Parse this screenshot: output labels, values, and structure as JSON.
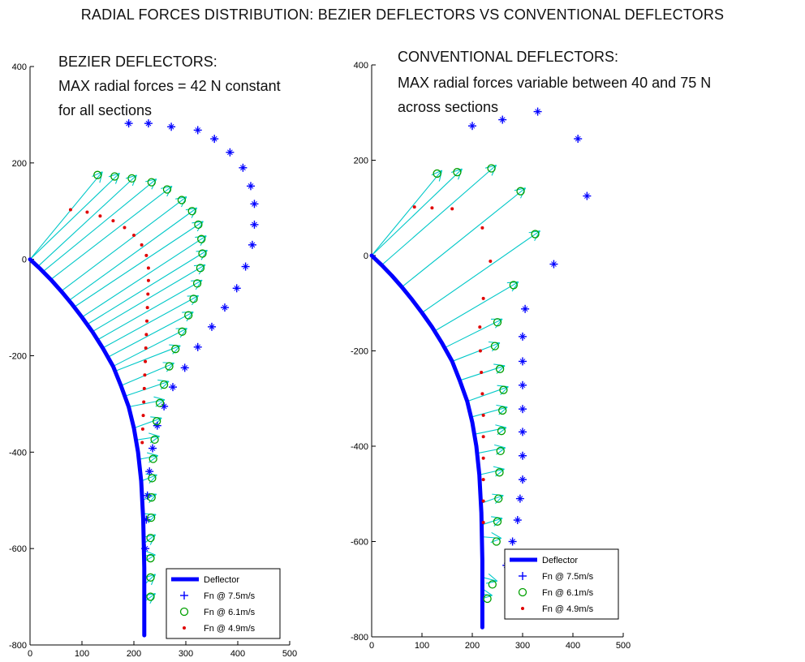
{
  "figure": {
    "title": "RADIAL FORCES DISTRIBUTION: BEZIER DEFLECTORS VS CONVENTIONAL DEFLECTORS"
  },
  "colors": {
    "deflector": "#0000ff",
    "fn75": "#0000ff",
    "fn61": "#00a000",
    "fn49": "#e00000",
    "arrow": "#00c8c8"
  },
  "chart_data": [
    {
      "type": "scatter",
      "panel": "bezier",
      "annotation": {
        "line1": "BEZIER DEFLECTORS:",
        "line2": "MAX radial forces = 42 N constant",
        "line3": "for all sections"
      },
      "xlim": [
        0,
        500
      ],
      "ylim": [
        -800,
        400
      ],
      "xticks": [
        0,
        100,
        200,
        300,
        400,
        500
      ],
      "yticks": [
        400,
        200,
        0,
        -200,
        -400,
        -600,
        -800
      ],
      "legend": {
        "placement": "bottom-right",
        "entries": [
          "Deflector",
          "Fn @ 7.5m/s",
          "Fn @ 6.1m/s",
          "Fn @ 4.9m/s"
        ]
      },
      "deflector": {
        "x": [
          0,
          20,
          40,
          60,
          80,
          100,
          120,
          140,
          160,
          175,
          190,
          200,
          208,
          214,
          218,
          220,
          220
        ],
        "y": [
          0,
          -20,
          -42,
          -66,
          -92,
          -120,
          -150,
          -184,
          -222,
          -262,
          -306,
          -350,
          -400,
          -460,
          -540,
          -640,
          -780
        ]
      },
      "fn75": {
        "x": [
          190,
          228,
          272,
          323,
          355,
          385,
          410,
          425,
          432,
          432,
          428,
          415,
          398,
          375,
          350,
          323,
          298,
          275,
          258,
          245,
          236,
          230,
          226,
          224,
          222
        ],
        "y": [
          282,
          282,
          275,
          268,
          250,
          222,
          190,
          152,
          115,
          72,
          30,
          -15,
          -60,
          -100,
          -140,
          -182,
          -225,
          -265,
          -305,
          -345,
          -392,
          -440,
          -490,
          -540,
          -600
        ]
      },
      "fn61": {
        "x": [
          130,
          163,
          196,
          234,
          264,
          292,
          312,
          324,
          330,
          332,
          328,
          322,
          315,
          305,
          293,
          280,
          268,
          258,
          250,
          244,
          240,
          237,
          235,
          234,
          233,
          232,
          232,
          232,
          232
        ],
        "y": [
          175,
          172,
          168,
          160,
          145,
          123,
          100,
          72,
          42,
          12,
          -18,
          -50,
          -82,
          -116,
          -150,
          -186,
          -222,
          -260,
          -298,
          -336,
          -374,
          -414,
          -454,
          -494,
          -536,
          -578,
          -620,
          -660,
          -700
        ]
      },
      "fn49": {
        "x": [
          78,
          110,
          135,
          160,
          182,
          200,
          215,
          224,
          228,
          228,
          227,
          226,
          225,
          224,
          223,
          222,
          221,
          220,
          219,
          218,
          217,
          216
        ],
        "y": [
          103,
          98,
          90,
          80,
          66,
          50,
          30,
          8,
          -18,
          -44,
          -72,
          -100,
          -128,
          -156,
          -184,
          -212,
          -240,
          -268,
          -296,
          -324,
          -352,
          -380
        ]
      }
    },
    {
      "type": "scatter",
      "panel": "conventional",
      "annotation": {
        "line1": "CONVENTIONAL DEFLECTORS:",
        "line2": "MAX radial forces variable between 40 and 75 N",
        "line3": "across sections"
      },
      "xlim": [
        0,
        500
      ],
      "ylim": [
        -800,
        400
      ],
      "xticks": [
        0,
        100,
        200,
        300,
        400,
        500
      ],
      "yticks": [
        400,
        200,
        0,
        -200,
        -400,
        -600,
        -800
      ],
      "legend": {
        "placement": "bottom-right",
        "entries": [
          "Deflector",
          "Fn @ 7.5m/s",
          "Fn @ 6.1m/s",
          "Fn @ 4.9m/s"
        ]
      },
      "deflector": {
        "x": [
          0,
          20,
          40,
          60,
          80,
          100,
          120,
          140,
          160,
          175,
          190,
          200,
          208,
          214,
          218,
          220,
          220
        ],
        "y": [
          0,
          -20,
          -42,
          -66,
          -92,
          -120,
          -150,
          -184,
          -222,
          -262,
          -306,
          -350,
          -400,
          -460,
          -540,
          -640,
          -780
        ]
      },
      "fn75": {
        "x": [
          200,
          260,
          330,
          410,
          428,
          362,
          305,
          300,
          300,
          300,
          300,
          300,
          300,
          300,
          295,
          290,
          280,
          268
        ],
        "y": [
          272,
          285,
          302,
          245,
          125,
          -18,
          -112,
          -170,
          -222,
          -272,
          -322,
          -370,
          -420,
          -470,
          -510,
          -555,
          -600,
          -650
        ]
      },
      "fn61": {
        "x": [
          130,
          170,
          238,
          296,
          325,
          282,
          250,
          245,
          255,
          262,
          260,
          258,
          256,
          254,
          252,
          250,
          248,
          240,
          230
        ],
        "y": [
          172,
          175,
          183,
          135,
          45,
          -62,
          -140,
          -190,
          -238,
          -282,
          -325,
          -368,
          -410,
          -455,
          -510,
          -558,
          -600,
          -690,
          -720
        ]
      },
      "fn49": {
        "x": [
          85,
          120,
          160,
          220,
          236,
          222,
          215,
          216,
          218,
          220,
          222,
          222,
          222,
          222,
          222,
          222
        ],
        "y": [
          102,
          100,
          98,
          58,
          -12,
          -90,
          -150,
          -200,
          -245,
          -290,
          -335,
          -380,
          -425,
          -470,
          -515,
          -560
        ]
      }
    }
  ]
}
